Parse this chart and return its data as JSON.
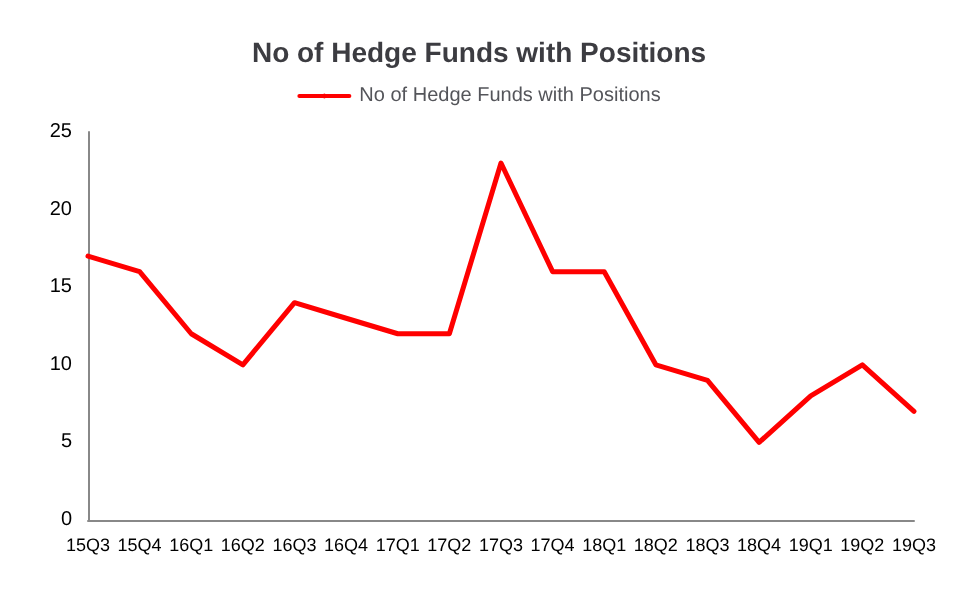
{
  "chart_data": {
    "type": "line",
    "title": "No of Hedge Funds with Positions",
    "categories": [
      "15Q3",
      "15Q4",
      "16Q1",
      "16Q2",
      "16Q3",
      "16Q4",
      "17Q1",
      "17Q2",
      "17Q3",
      "17Q4",
      "18Q1",
      "18Q2",
      "18Q3",
      "18Q4",
      "19Q1",
      "19Q2",
      "19Q3"
    ],
    "series": [
      {
        "name": "No of Hedge Funds with Positions",
        "color": "#ff0000",
        "values": [
          17,
          16,
          12,
          10,
          14,
          13,
          12,
          12,
          23,
          16,
          16,
          10,
          9,
          5,
          8,
          10,
          7
        ]
      }
    ],
    "ylim": [
      0,
      25
    ],
    "yticks": [
      0,
      5,
      10,
      15,
      20,
      25
    ],
    "grid": false,
    "legend": "top",
    "marker": "none",
    "line_style": "solid"
  }
}
